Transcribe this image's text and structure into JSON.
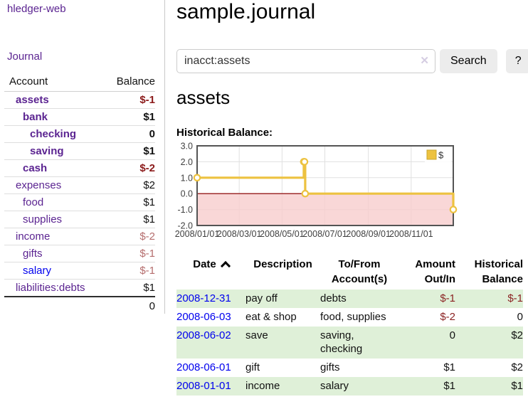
{
  "app": {
    "title": "hledger-web"
  },
  "colors": {
    "link_purple": "#5b2491",
    "link_blue": "#0000ee",
    "negative_strong": "#8b1a1a",
    "negative_soft": "#b56d6d",
    "negative": "#8b2323",
    "row_stripe_green": "#dff0d8"
  },
  "sidebar": {
    "journal_link": "Journal",
    "accounts_table": {
      "headers": {
        "account": "Account",
        "balance": "Balance"
      },
      "rows": [
        {
          "name": "assets",
          "indent": 1,
          "bold": true,
          "balance": "$-1",
          "balance_style": "neg-strong",
          "link_style": "purple"
        },
        {
          "name": "bank",
          "indent": 2,
          "bold": true,
          "balance": "$1",
          "balance_style": "pos",
          "link_style": "purple"
        },
        {
          "name": "checking",
          "indent": 3,
          "bold": true,
          "balance": "0",
          "balance_style": "pos",
          "link_style": "purple"
        },
        {
          "name": "saving",
          "indent": 3,
          "bold": true,
          "balance": "$1",
          "balance_style": "pos",
          "link_style": "purple"
        },
        {
          "name": "cash",
          "indent": 2,
          "bold": true,
          "balance": "$-2",
          "balance_style": "neg-strong",
          "link_style": "purple"
        },
        {
          "name": "expenses",
          "indent": 1,
          "bold": false,
          "balance": "$2",
          "balance_style": "pos",
          "link_style": "purple"
        },
        {
          "name": "food",
          "indent": 2,
          "bold": false,
          "balance": "$1",
          "balance_style": "pos",
          "link_style": "purple"
        },
        {
          "name": "supplies",
          "indent": 2,
          "bold": false,
          "balance": "$1",
          "balance_style": "pos",
          "link_style": "purple"
        },
        {
          "name": "income",
          "indent": 1,
          "bold": false,
          "balance": "$-2",
          "balance_style": "neg-soft",
          "link_style": "purple"
        },
        {
          "name": "gifts",
          "indent": 2,
          "bold": false,
          "balance": "$-1",
          "balance_style": "neg-soft",
          "link_style": "purple"
        },
        {
          "name": "salary",
          "indent": 2,
          "bold": false,
          "balance": "$-1",
          "balance_style": "neg-soft",
          "link_style": "blue"
        },
        {
          "name": "liabilities:debts",
          "indent": 1,
          "bold": false,
          "balance": "$1",
          "balance_style": "pos",
          "link_style": "purple"
        }
      ],
      "total": "0"
    }
  },
  "header": {
    "title": "sample.journal"
  },
  "search": {
    "value": "inacct:assets",
    "clear_icon": "✕",
    "button_label": "Search",
    "help_label": "?"
  },
  "account_page": {
    "heading": "assets",
    "chart_label": "Historical Balance:"
  },
  "chart_data": {
    "type": "line",
    "step": true,
    "title": "Historical Balance:",
    "legend_position": "top-right",
    "grid": true,
    "xlim": [
      "2008-01-01",
      "2008-12-31"
    ],
    "ylim": [
      -2,
      3
    ],
    "y_ticks": [
      {
        "label": "3.0",
        "value": 3
      },
      {
        "label": "2.0",
        "value": 2
      },
      {
        "label": "1.0",
        "value": 1
      },
      {
        "label": "0.0",
        "value": 0
      },
      {
        "label": "-1.0",
        "value": -1
      },
      {
        "label": "-2.0",
        "value": -2
      }
    ],
    "x_ticks": [
      {
        "label": "2008/01/01",
        "date": "2008-01-01"
      },
      {
        "label": "2008/03/01",
        "date": "2008-03-01"
      },
      {
        "label": "2008/05/01",
        "date": "2008-05-01"
      },
      {
        "label": "2008/07/01",
        "date": "2008-07-01"
      },
      {
        "label": "2008/09/01",
        "date": "2008-09-01"
      },
      {
        "label": "2008/11/01",
        "date": "2008-11-01"
      }
    ],
    "series": [
      {
        "name": "$",
        "color": "#edc240",
        "points": [
          {
            "date": "2008-01-01",
            "value": 1
          },
          {
            "date": "2008-06-01",
            "value": 2
          },
          {
            "date": "2008-06-02",
            "value": 2
          },
          {
            "date": "2008-06-03",
            "value": 0
          },
          {
            "date": "2008-12-31",
            "value": -1
          }
        ]
      }
    ],
    "colors": {
      "grid": "#e0e0e0",
      "border": "#545454",
      "negative_fill": "#f8cdcd",
      "zero_line": "#9e2b2b",
      "axis_text": "#3f3f3f",
      "legend_box_border": "#c9a52e",
      "legend_text": "#333333"
    }
  },
  "register": {
    "headers": {
      "date": "Date",
      "description": "Description",
      "accounts": "To/From Account(s)",
      "amount": "Amount Out/In",
      "balance": "Historical Balance"
    },
    "sort_icon": "chevron-up",
    "rows": [
      {
        "date": "2008-12-31",
        "description": "pay off",
        "accounts": "debts",
        "amount": "$-1",
        "amount_negative": true,
        "balance": "$-1",
        "balance_negative": true
      },
      {
        "date": "2008-06-03",
        "description": "eat & shop",
        "accounts": "food, supplies",
        "amount": "$-2",
        "amount_negative": true,
        "balance": "0",
        "balance_negative": false
      },
      {
        "date": "2008-06-02",
        "description": "save",
        "accounts": "saving, checking",
        "amount": "0",
        "amount_negative": false,
        "balance": "$2",
        "balance_negative": false
      },
      {
        "date": "2008-06-01",
        "description": "gift",
        "accounts": "gifts",
        "amount": "$1",
        "amount_negative": false,
        "balance": "$2",
        "balance_negative": false
      },
      {
        "date": "2008-01-01",
        "description": "income",
        "accounts": "salary",
        "amount": "$1",
        "amount_negative": false,
        "balance": "$1",
        "balance_negative": false
      }
    ]
  }
}
